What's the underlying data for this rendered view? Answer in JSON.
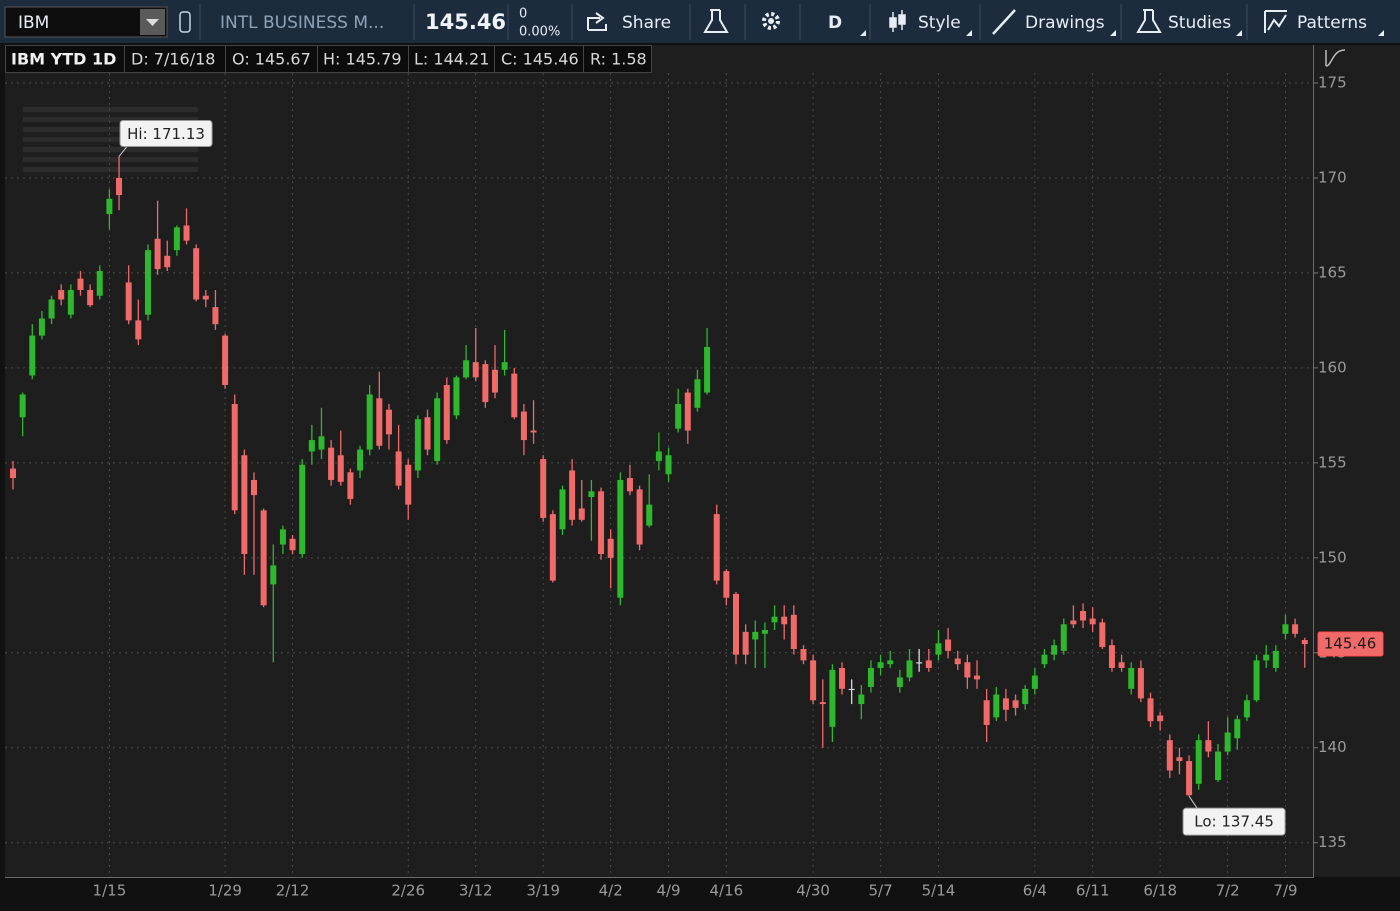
{
  "toolbar": {
    "symbol": "IBM",
    "description": "INTL BUSINESS M...",
    "last": "145.46",
    "change": "0",
    "change_pct": "0.00%",
    "buttons": [
      "Share",
      "D",
      "Style",
      "Drawings",
      "Studies",
      "Patterns"
    ]
  },
  "info_bar": [
    "IBM YTD 1D",
    "D: 7/16/18",
    "O: 145.67",
    "H: 145.79",
    "L: 144.21",
    "C: 145.46",
    "R: 1.58"
  ],
  "chart_data": {
    "type": "candlestick",
    "categories": [
      null,
      null,
      null,
      null,
      null,
      null,
      null,
      null,
      null,
      null,
      "1/15",
      null,
      null,
      null,
      null,
      null,
      null,
      null,
      null,
      null,
      null,
      null,
      "1/29",
      null,
      null,
      null,
      null,
      null,
      null,
      "2/12",
      null,
      null,
      null,
      null,
      null,
      null,
      null,
      null,
      null,
      null,
      null,
      "2/26",
      null,
      null,
      null,
      null,
      null,
      null,
      "3/12",
      null,
      null,
      null,
      null,
      null,
      null,
      "3/19",
      null,
      null,
      null,
      null,
      null,
      null,
      "4/2",
      null,
      null,
      null,
      null,
      null,
      "4/9",
      null,
      null,
      null,
      null,
      null,
      "4/16",
      null,
      null,
      null,
      null,
      null,
      null,
      null,
      null,
      "4/30",
      null,
      null,
      null,
      null,
      null,
      null,
      "5/7",
      null,
      null,
      null,
      null,
      null,
      "5/14",
      null,
      null,
      null,
      null,
      null,
      null,
      null,
      null,
      null,
      "6/4",
      null,
      null,
      null,
      null,
      null,
      "6/11",
      null,
      null,
      null,
      null,
      null,
      null,
      "6/18",
      null,
      null,
      null,
      null,
      null,
      null,
      "7/2",
      null,
      null,
      null,
      null,
      null,
      "7/9",
      null,
      null
    ],
    "open": [
      154.7,
      157.4,
      159.6,
      161.7,
      162.6,
      164.1,
      162.8,
      164.7,
      164.1,
      163.8,
      168.1,
      170.0,
      164.5,
      162.5,
      162.8,
      166.8,
      165.9,
      166.2,
      167.5,
      166.3,
      163.8,
      163.2,
      161.7,
      158.1,
      155.4,
      154.1,
      152.5,
      148.6,
      150.7,
      151.0,
      150.2,
      155.6,
      155.7,
      155.8,
      155.4,
      154.5,
      154.6,
      155.7,
      158.4,
      157.8,
      155.6,
      154.9,
      154.6,
      157.4,
      155.1,
      159.1,
      157.5,
      159.5,
      160.3,
      160.2,
      159.9,
      159.9,
      159.7,
      157.7,
      156.7,
      155.2,
      152.3,
      151.5,
      154.6,
      152.6,
      153.2,
      153.5,
      151.0,
      147.9,
      154.2,
      153.6,
      151.7,
      155.1,
      154.4,
      156.8,
      158.7,
      157.9,
      158.7,
      152.3,
      149.3,
      148.1,
      146.1,
      145.7,
      146.0,
      146.6,
      146.9,
      147.0,
      145.2,
      144.6,
      142.4,
      141.1,
      144.2,
      143.1,
      142.3,
      143.2,
      144.2,
      144.4,
      143.2,
      143.7,
      144.5,
      144.6,
      144.9,
      145.7,
      144.7,
      144.5,
      143.8,
      142.5,
      141.6,
      142.6,
      142.5,
      142.3,
      143.1,
      144.4,
      144.9,
      145.1,
      146.7,
      147.2,
      146.8,
      146.6,
      145.4,
      144.5,
      143.1,
      144.2,
      142.6,
      141.7,
      140.4,
      139.5,
      139.3,
      138.1,
      140.4,
      138.3,
      139.8,
      140.5,
      141.6,
      142.5,
      144.6,
      144.2,
      146.0,
      146.5,
      145.67
    ],
    "high": [
      155.1,
      158.7,
      162.3,
      163.0,
      163.8,
      164.4,
      164.4,
      165.1,
      164.4,
      165.4,
      169.4,
      171.13,
      165.4,
      163.6,
      166.5,
      168.8,
      166.7,
      167.5,
      168.4,
      166.5,
      164.1,
      164.1,
      161.8,
      158.6,
      155.7,
      154.5,
      152.6,
      150.7,
      151.7,
      151.2,
      155.2,
      157.0,
      157.9,
      156.2,
      156.7,
      154.7,
      155.9,
      159.1,
      159.8,
      158.1,
      157.0,
      155.2,
      157.5,
      157.8,
      158.7,
      159.5,
      159.6,
      161.2,
      162.1,
      160.4,
      161.2,
      162.0,
      160.0,
      158.1,
      158.3,
      155.4,
      152.5,
      153.8,
      155.2,
      154.1,
      154.1,
      153.7,
      151.5,
      154.5,
      154.9,
      153.8,
      154.4,
      156.6,
      155.8,
      158.9,
      158.9,
      159.9,
      162.1,
      152.8,
      149.4,
      148.2,
      146.5,
      146.7,
      146.6,
      147.5,
      147.5,
      147.5,
      145.4,
      144.9,
      143.6,
      144.4,
      144.5,
      143.6,
      143.3,
      144.6,
      144.9,
      145.1,
      144.1,
      145.2,
      145.2,
      145.2,
      146.2,
      146.3,
      145.1,
      144.9,
      144.6,
      143.1,
      143.2,
      143.1,
      142.8,
      143.3,
      144.2,
      145.2,
      145.7,
      146.8,
      147.5,
      147.6,
      147.4,
      146.8,
      145.7,
      144.9,
      144.5,
      144.6,
      142.9,
      141.9,
      140.7,
      140.0,
      139.6,
      140.7,
      141.4,
      140.2,
      141.6,
      141.7,
      142.8,
      144.9,
      145.4,
      145.4,
      147.0,
      146.8,
      145.79
    ],
    "low": [
      153.6,
      156.4,
      159.4,
      161.5,
      162.3,
      163.3,
      162.6,
      163.8,
      163.2,
      163.6,
      167.3,
      168.3,
      162.3,
      161.2,
      162.5,
      164.9,
      165.1,
      165.9,
      166.5,
      163.5,
      163.2,
      162.0,
      158.9,
      152.3,
      149.1,
      149.1,
      147.4,
      144.5,
      150.2,
      150.2,
      150.0,
      154.9,
      155.2,
      153.8,
      153.8,
      152.8,
      154.2,
      155.4,
      155.7,
      155.7,
      153.6,
      152.0,
      154.2,
      155.4,
      154.9,
      156.0,
      157.3,
      159.4,
      159.3,
      157.9,
      158.4,
      159.6,
      157.3,
      155.4,
      156.0,
      151.9,
      148.7,
      151.2,
      151.7,
      151.9,
      150.9,
      149.9,
      148.4,
      147.5,
      153.3,
      150.4,
      151.6,
      154.6,
      154.0,
      156.6,
      156.0,
      157.7,
      158.6,
      148.6,
      147.5,
      144.4,
      144.4,
      144.2,
      144.2,
      146.2,
      145.7,
      144.9,
      144.4,
      142.3,
      140.0,
      140.3,
      142.8,
      142.3,
      141.5,
      142.9,
      143.8,
      144.2,
      142.9,
      143.5,
      144.0,
      144.0,
      144.6,
      144.7,
      144.1,
      143.1,
      143.1,
      140.3,
      141.4,
      141.4,
      141.7,
      142.0,
      142.8,
      144.2,
      144.6,
      144.9,
      146.3,
      146.3,
      146.1,
      145.2,
      144.0,
      144.0,
      142.8,
      142.4,
      141.1,
      140.9,
      138.4,
      138.6,
      137.45,
      137.8,
      139.5,
      138.2,
      139.6,
      139.9,
      141.4,
      142.4,
      144.2,
      144.0,
      145.7,
      145.8,
      144.21
    ],
    "close": [
      154.2,
      158.6,
      161.7,
      162.6,
      163.6,
      163.6,
      164.1,
      164.1,
      163.3,
      165.1,
      168.9,
      169.1,
      162.5,
      161.5,
      166.2,
      165.2,
      165.3,
      167.4,
      166.7,
      163.6,
      163.6,
      162.3,
      159.1,
      152.5,
      150.2,
      153.3,
      147.5,
      149.6,
      151.5,
      150.4,
      154.9,
      156.2,
      156.4,
      154.1,
      154.0,
      153.1,
      155.7,
      158.6,
      155.9,
      156.5,
      153.8,
      152.8,
      157.3,
      155.7,
      158.4,
      156.2,
      159.5,
      160.4,
      159.5,
      158.2,
      158.7,
      160.3,
      157.4,
      156.2,
      156.6,
      152.1,
      148.8,
      153.6,
      152.0,
      152.0,
      153.5,
      150.2,
      150.0,
      154.1,
      153.5,
      150.7,
      152.8,
      155.6,
      155.4,
      158.1,
      156.7,
      159.4,
      161.1,
      148.8,
      147.9,
      144.9,
      144.9,
      146.1,
      146.2,
      146.9,
      146.5,
      145.2,
      144.6,
      142.5,
      142.3,
      144.1,
      143.1,
      143.1,
      142.8,
      144.2,
      144.5,
      144.6,
      143.7,
      144.6,
      144.5,
      144.2,
      145.5,
      145.1,
      144.4,
      143.7,
      143.6,
      141.2,
      142.8,
      142.0,
      142.1,
      143.1,
      143.8,
      144.9,
      145.4,
      146.5,
      146.5,
      146.7,
      146.5,
      145.3,
      144.2,
      144.2,
      144.2,
      142.6,
      141.4,
      141.4,
      138.8,
      139.3,
      137.5,
      140.4,
      139.8,
      139.8,
      140.8,
      141.5,
      142.5,
      144.6,
      144.9,
      145.1,
      146.5,
      146.0,
      145.46
    ],
    "up_color": "#2db82d",
    "down_color": "#f06a6a",
    "unchanged_color": "#d8d8d8",
    "hi_label": "Hi: 171.13",
    "lo_label": "Lo: 137.45",
    "ylim": [
      133.3,
      177
    ],
    "yticks": [
      135,
      140,
      145,
      150,
      155,
      160,
      165,
      170,
      175
    ],
    "grid": true
  }
}
